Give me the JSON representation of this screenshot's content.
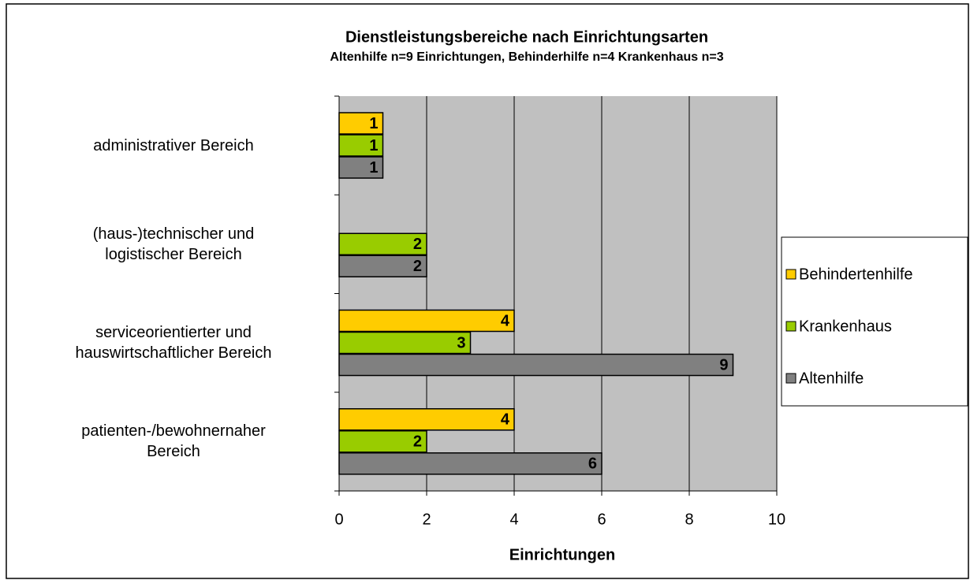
{
  "chart_data": {
    "type": "bar",
    "orientation": "horizontal",
    "title": "Dienstleistungsbereiche nach Einrichtungsarten",
    "subtitle": "Altenhilfe n=9 Einrichtungen, Behinderhilfe n=4  Krankenhaus n=3",
    "xlabel": "Einrichtungen",
    "categories": [
      "administrativer Bereich",
      "(haus-)technischer und\nlogistischer Bereich",
      "serviceorientierter und\nhauswirtschaftlicher Bereich",
      "patienten-/bewohnernaher\nBereich"
    ],
    "series": [
      {
        "name": "Behindertenhilfe",
        "color": "#ffcc00",
        "values": [
          1,
          null,
          4,
          4
        ]
      },
      {
        "name": "Krankenhaus",
        "color": "#99cc00",
        "values": [
          1,
          2,
          3,
          2
        ]
      },
      {
        "name": "Altenhilfe",
        "color": "#808080",
        "values": [
          1,
          2,
          9,
          6
        ]
      }
    ],
    "xlim": [
      0,
      10
    ],
    "xticks": [
      0,
      2,
      4,
      6,
      8,
      10
    ],
    "grid": true,
    "legend": "right",
    "plot_background": "#c0c0c0"
  }
}
